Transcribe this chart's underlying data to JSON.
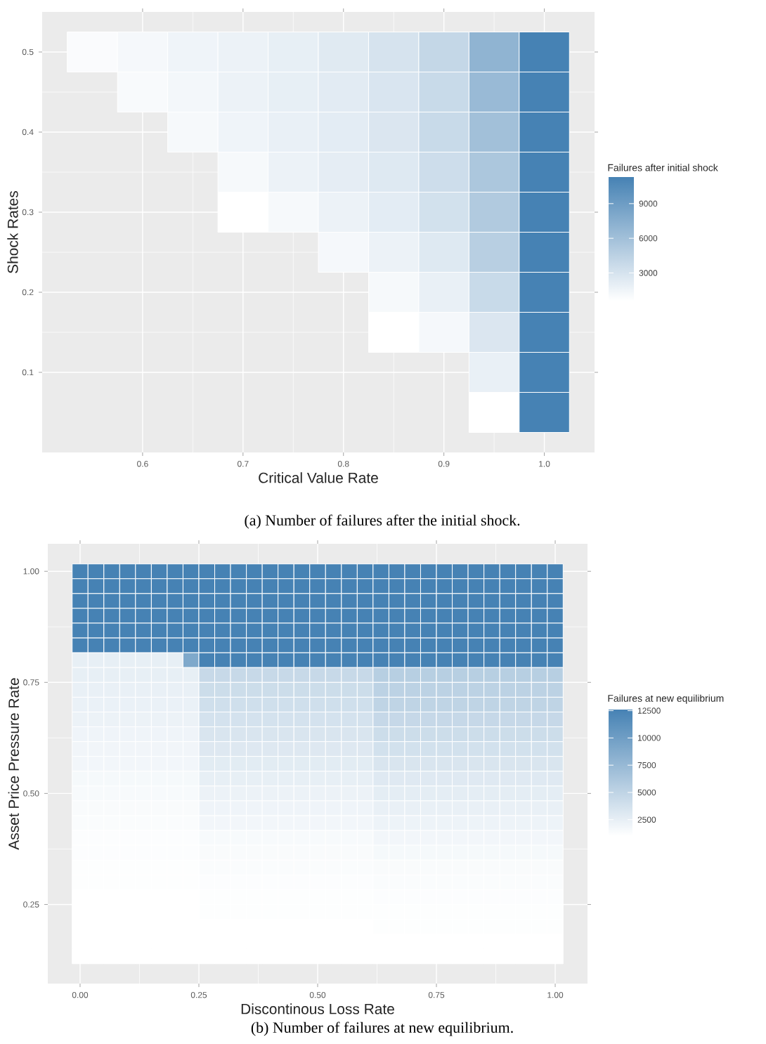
{
  "chart_data": [
    {
      "type": "heatmap",
      "xlabel": "Critical Value Rate",
      "ylabel": "Shock Rates",
      "clabel": "Failures after initial shock",
      "annotations": [
        "(a) Number of failures after the initial shock."
      ],
      "color": "#4682b4",
      "grid": true,
      "x": [
        0.55,
        0.6,
        0.65,
        0.7,
        0.75,
        0.8,
        0.85,
        0.9,
        0.95,
        1.0
      ],
      "y": [
        0.5,
        0.45,
        0.4,
        0.35,
        0.3,
        0.25,
        0.2,
        0.15,
        0.1,
        0.05
      ],
      "xlim": [
        0.5,
        1.05
      ],
      "ylim": [
        0,
        0.55
      ],
      "xticks": [
        0.6,
        0.7,
        0.8,
        0.9,
        {
          "value": 1.0,
          "label": "1.0"
        }
      ],
      "yticks": [
        0.1,
        0.2,
        0.3,
        0.4,
        0.5
      ],
      "clim": [
        600,
        11300
      ],
      "cticks": [
        3000,
        6000,
        9000
      ],
      "cells": [
        [
          900,
          1200,
          1500,
          1700,
          2000,
          2400,
          3000,
          4000,
          7000,
          11300
        ],
        [
          null,
          1000,
          1300,
          1700,
          2000,
          2300,
          2800,
          3800,
          6500,
          11300
        ],
        [
          null,
          null,
          1100,
          1500,
          1900,
          2200,
          2700,
          3800,
          6000,
          11300
        ],
        [
          null,
          null,
          null,
          1100,
          1700,
          2100,
          2500,
          3500,
          5400,
          11300
        ],
        [
          null,
          null,
          null,
          600,
          1100,
          1700,
          2200,
          3200,
          5100,
          11300
        ],
        [
          null,
          null,
          null,
          null,
          null,
          1200,
          1700,
          2500,
          4700,
          11300
        ],
        [
          null,
          null,
          null,
          null,
          null,
          null,
          1100,
          1900,
          3800,
          11300
        ],
        [
          null,
          null,
          null,
          null,
          null,
          null,
          600,
          1200,
          2700,
          11300
        ],
        [
          null,
          null,
          null,
          null,
          null,
          null,
          null,
          null,
          1900,
          11300
        ],
        [
          null,
          null,
          null,
          null,
          null,
          null,
          null,
          null,
          600,
          11300
        ]
      ]
    },
    {
      "type": "heatmap",
      "xlabel": "Discontinous Loss Rate",
      "ylabel": "Asset Price Pressure Rate",
      "clabel": "Failures at new equilibrium",
      "annotations": [
        "(b) Number of failures at new equilibrium."
      ],
      "color": "#4682b4",
      "grid": true,
      "x": [
        0,
        0.0333,
        0.0667,
        0.1,
        0.1333,
        0.1667,
        0.2,
        0.2333,
        0.2667,
        0.3,
        0.3333,
        0.3667,
        0.4,
        0.4333,
        0.4667,
        0.5,
        0.5333,
        0.5667,
        0.6,
        0.6333,
        0.6667,
        0.7,
        0.7333,
        0.7667,
        0.8,
        0.8333,
        0.8667,
        0.9,
        0.9333,
        0.9667,
        1.0
      ],
      "y": [
        1.0,
        0.9667,
        0.9333,
        0.9,
        0.8667,
        0.8333,
        0.8,
        0.7667,
        0.7333,
        0.7,
        0.6667,
        0.6333,
        0.6,
        0.5667,
        0.5333,
        0.5,
        0.4667,
        0.4333,
        0.4,
        0.3667,
        0.3333,
        0.3,
        0.2667,
        0.2333,
        0.2,
        0.1667,
        0.1333
      ],
      "xlim": [
        -0.068,
        1.068
      ],
      "ylim": [
        0.072,
        1.062
      ],
      "xticks": [
        {
          "value": 0,
          "label": "0.00"
        },
        0.25,
        {
          "value": 0.5,
          "label": "0.50"
        },
        0.75,
        {
          "value": 1.0,
          "label": "1.00"
        }
      ],
      "yticks": [
        0.25,
        {
          "value": 0.5,
          "label": "0.50"
        },
        0.75,
        {
          "value": 1.0,
          "label": "1.00"
        }
      ],
      "clim": [
        1000,
        12600
      ],
      "cticks": [
        2500,
        5000,
        7500,
        10000,
        12500
      ],
      "cells": [
        [
          12600,
          12600,
          12600,
          12600,
          12600,
          12600,
          12600,
          12600,
          12600,
          12600,
          12600,
          12600,
          12600,
          12600,
          12600,
          12600,
          12600,
          12600,
          12600,
          12600,
          12600,
          12600,
          12600,
          12600,
          12600,
          12600,
          12600,
          12600,
          12600,
          12600,
          12600
        ],
        [
          12600,
          12600,
          12600,
          12600,
          12600,
          12600,
          12600,
          12600,
          12600,
          12600,
          12600,
          12600,
          12600,
          12600,
          12600,
          12600,
          12600,
          12600,
          12600,
          12600,
          12600,
          12600,
          12600,
          12600,
          12600,
          12600,
          12600,
          12600,
          12600,
          12600,
          12600
        ],
        [
          12600,
          12600,
          12600,
          12600,
          12600,
          12600,
          12600,
          12600,
          12600,
          12600,
          12600,
          12600,
          12600,
          12600,
          12600,
          12600,
          12600,
          12600,
          12600,
          12600,
          12600,
          12600,
          12600,
          12600,
          12600,
          12600,
          12600,
          12600,
          12600,
          12600,
          12600
        ],
        [
          12600,
          12600,
          12600,
          12600,
          12600,
          12600,
          12600,
          12600,
          12600,
          12600,
          12600,
          12600,
          12600,
          12600,
          12600,
          12600,
          12600,
          12600,
          12600,
          12600,
          12600,
          12600,
          12600,
          12600,
          12600,
          12600,
          12600,
          12600,
          12600,
          12600,
          12600
        ],
        [
          12600,
          12600,
          12600,
          12600,
          12600,
          12600,
          12600,
          12600,
          12600,
          12600,
          12600,
          12600,
          12600,
          12600,
          12600,
          12600,
          12600,
          12600,
          12600,
          12600,
          12600,
          12600,
          12600,
          12600,
          12600,
          12600,
          12600,
          12600,
          12600,
          12600,
          12600
        ],
        [
          12600,
          12600,
          12600,
          12600,
          12600,
          12600,
          12600,
          12600,
          12600,
          12600,
          12600,
          12600,
          12600,
          12600,
          12600,
          12600,
          12600,
          12600,
          12600,
          12600,
          12600,
          12600,
          12600,
          12600,
          12600,
          12600,
          12600,
          12600,
          12600,
          12600,
          12600
        ],
        [
          2500,
          2500,
          2500,
          2500,
          2500,
          2500,
          2500,
          9000,
          12600,
          12600,
          12600,
          12600,
          12600,
          12600,
          12600,
          12600,
          12600,
          12600,
          12600,
          12600,
          12600,
          12600,
          12600,
          12600,
          12600,
          12600,
          12600,
          12600,
          12600,
          12600,
          12600
        ],
        [
          2500,
          2500,
          2500,
          2500,
          2500,
          2500,
          2500,
          2500,
          4500,
          4500,
          4500,
          4500,
          4500,
          4500,
          4500,
          4500,
          4500,
          4500,
          4500,
          5500,
          5500,
          5500,
          5500,
          5500,
          5500,
          5500,
          5500,
          5500,
          5500,
          5500,
          5500
        ],
        [
          2400,
          2400,
          2400,
          2400,
          2400,
          2400,
          2400,
          2400,
          4200,
          4200,
          4200,
          4200,
          4200,
          4200,
          4200,
          4200,
          4200,
          4200,
          4200,
          5200,
          5200,
          5200,
          5200,
          5200,
          5200,
          5200,
          5200,
          5200,
          5200,
          5200,
          5200
        ],
        [
          2300,
          2300,
          2300,
          2300,
          2300,
          2300,
          2300,
          2300,
          4000,
          4000,
          4000,
          4000,
          4000,
          4000,
          4000,
          4000,
          4000,
          4000,
          4000,
          5000,
          5000,
          5000,
          5000,
          5000,
          5000,
          5000,
          5000,
          5000,
          5000,
          5000,
          5000
        ],
        [
          2200,
          2200,
          2200,
          2200,
          2200,
          2200,
          2200,
          2200,
          3700,
          3700,
          3700,
          3700,
          3700,
          3700,
          3700,
          3700,
          3700,
          3700,
          3700,
          4600,
          4600,
          4600,
          4600,
          4600,
          4600,
          4600,
          4600,
          4600,
          4600,
          4600,
          4600
        ],
        [
          2000,
          2000,
          2000,
          2000,
          2000,
          2000,
          2000,
          2000,
          3400,
          3400,
          3400,
          3400,
          3400,
          3400,
          3400,
          3400,
          3400,
          3400,
          3400,
          4200,
          4200,
          4200,
          4200,
          4200,
          4200,
          4200,
          4200,
          4200,
          4200,
          4200,
          4200
        ],
        [
          1900,
          1900,
          1900,
          1900,
          1900,
          1900,
          1900,
          1900,
          3100,
          3100,
          3100,
          3100,
          3100,
          3100,
          3100,
          3100,
          3100,
          3100,
          3100,
          3800,
          3800,
          3800,
          3800,
          3800,
          3800,
          3800,
          3800,
          3800,
          3800,
          3800,
          3800
        ],
        [
          1800,
          1800,
          1800,
          1800,
          1800,
          1800,
          1800,
          1800,
          2800,
          2800,
          2800,
          2800,
          2800,
          2800,
          2800,
          2800,
          2800,
          2800,
          2800,
          3400,
          3400,
          3400,
          3400,
          3400,
          3400,
          3400,
          3400,
          3400,
          3400,
          3400,
          3400
        ],
        [
          1600,
          1600,
          1600,
          1600,
          1600,
          1600,
          1600,
          1600,
          2500,
          2500,
          2500,
          2500,
          2500,
          2500,
          2500,
          2500,
          2500,
          2500,
          2500,
          3000,
          3000,
          3000,
          3000,
          3000,
          3000,
          3000,
          3000,
          3000,
          3000,
          3000,
          3000
        ],
        [
          1500,
          1500,
          1500,
          1500,
          1500,
          1500,
          1500,
          1500,
          2200,
          2200,
          2200,
          2200,
          2200,
          2200,
          2200,
          2200,
          2200,
          2200,
          2200,
          2700,
          2700,
          2700,
          2700,
          2700,
          2700,
          2700,
          2700,
          2700,
          2700,
          2700,
          2700
        ],
        [
          1400,
          1400,
          1400,
          1400,
          1400,
          1400,
          1400,
          1400,
          2000,
          2000,
          2000,
          2000,
          2000,
          2000,
          2000,
          2000,
          2000,
          2000,
          2000,
          2400,
          2400,
          2400,
          2400,
          2400,
          2400,
          2400,
          2400,
          2400,
          2400,
          2400,
          2400
        ],
        [
          1300,
          1300,
          1300,
          1300,
          1300,
          1300,
          1300,
          1300,
          1800,
          1800,
          1800,
          1800,
          1800,
          1800,
          1800,
          1800,
          1800,
          1800,
          1800,
          2100,
          2100,
          2100,
          2100,
          2100,
          2100,
          2100,
          2100,
          2100,
          2100,
          2100,
          2100
        ],
        [
          1200,
          1200,
          1200,
          1200,
          1200,
          1200,
          1200,
          1200,
          1500,
          1500,
          1500,
          1500,
          1500,
          1500,
          1500,
          1500,
          1500,
          1500,
          1500,
          1800,
          1800,
          1800,
          1800,
          1800,
          1800,
          1800,
          1800,
          1800,
          1800,
          1800,
          1800
        ],
        [
          1200,
          1200,
          1200,
          1200,
          1200,
          1200,
          1200,
          1200,
          1400,
          1400,
          1400,
          1400,
          1400,
          1400,
          1400,
          1400,
          1400,
          1400,
          1400,
          1600,
          1600,
          1600,
          1600,
          1600,
          1600,
          1600,
          1600,
          1600,
          1600,
          1600,
          1600
        ],
        [
          1100,
          1100,
          1100,
          1100,
          1100,
          1100,
          1100,
          1100,
          1300,
          1300,
          1300,
          1300,
          1300,
          1300,
          1300,
          1300,
          1300,
          1300,
          1300,
          1400,
          1400,
          1400,
          1400,
          1400,
          1400,
          1400,
          1400,
          1400,
          1400,
          1400,
          1400
        ],
        [
          1100,
          1100,
          1100,
          1100,
          1100,
          1100,
          1100,
          1100,
          1200,
          1200,
          1200,
          1200,
          1200,
          1200,
          1200,
          1200,
          1200,
          1200,
          1200,
          1300,
          1300,
          1300,
          1300,
          1300,
          1300,
          1300,
          1300,
          1300,
          1300,
          1300,
          1300
        ],
        [
          1000,
          1000,
          1000,
          1000,
          1000,
          1000,
          1000,
          1000,
          1100,
          1100,
          1100,
          1100,
          1100,
          1100,
          1100,
          1100,
          1100,
          1100,
          1100,
          1200,
          1200,
          1200,
          1200,
          1200,
          1200,
          1200,
          1200,
          1200,
          1200,
          1200,
          1200
        ],
        [
          1000,
          1000,
          1000,
          1000,
          1000,
          1000,
          1000,
          1000,
          1100,
          1100,
          1100,
          1100,
          1100,
          1100,
          1100,
          1100,
          1100,
          1100,
          1100,
          1100,
          1100,
          1100,
          1100,
          1100,
          1100,
          1100,
          1100,
          1100,
          1100,
          1100,
          1100
        ],
        [
          1000,
          1000,
          1000,
          1000,
          1000,
          1000,
          1000,
          1000,
          1000,
          1000,
          1000,
          1000,
          1000,
          1000,
          1000,
          1000,
          1000,
          1000,
          1000,
          1100,
          1100,
          1100,
          1100,
          1100,
          1100,
          1100,
          1100,
          1100,
          1100,
          1100,
          1100
        ],
        [
          1000,
          1000,
          1000,
          1000,
          1000,
          1000,
          1000,
          1000,
          1000,
          1000,
          1000,
          1000,
          1000,
          1000,
          1000,
          1000,
          1000,
          1000,
          1000,
          1000,
          1000,
          1000,
          1000,
          1000,
          1000,
          1000,
          1000,
          1000,
          1000,
          1000,
          1000
        ],
        [
          1000,
          1000,
          1000,
          1000,
          1000,
          1000,
          1000,
          1000,
          1000,
          1000,
          1000,
          1000,
          1000,
          1000,
          1000,
          1000,
          1000,
          1000,
          1000,
          1000,
          1000,
          1000,
          1000,
          1000,
          1000,
          1000,
          1000,
          1000,
          1000,
          1000,
          1000
        ]
      ]
    }
  ]
}
